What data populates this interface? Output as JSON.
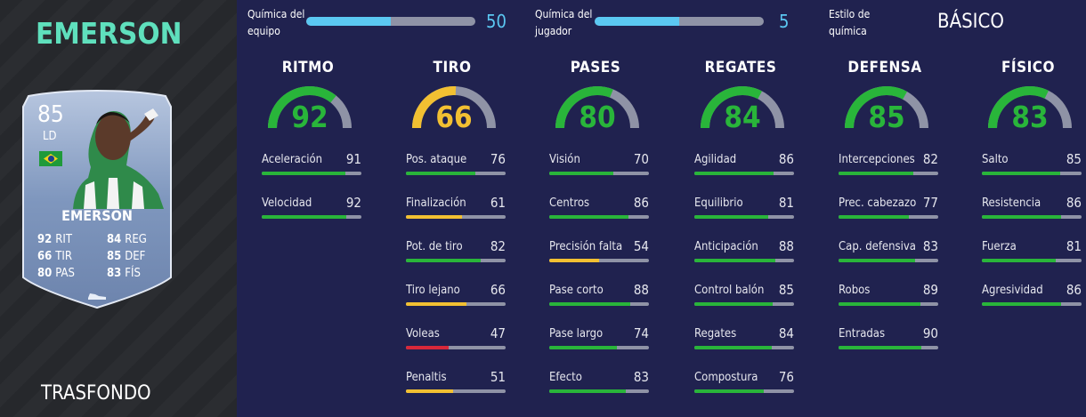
{
  "player": {
    "name": "EMERSON",
    "card": {
      "rating": "85",
      "position": "LD",
      "name": "EMERSON",
      "stats": [
        {
          "value": "92",
          "label": "RIT"
        },
        {
          "value": "84",
          "label": "REG"
        },
        {
          "value": "66",
          "label": "TIR"
        },
        {
          "value": "85",
          "label": "DEF"
        },
        {
          "value": "80",
          "label": "PAS"
        },
        {
          "value": "83",
          "label": "FÍS"
        }
      ]
    },
    "section_label": "TRASFONDO"
  },
  "chemistry": {
    "team_label_1": "Química del",
    "team_label_2": "equipo",
    "team_value": 50,
    "team_max": 100,
    "player_label_1": "Química del",
    "player_label_2": "jugador",
    "player_value": 5,
    "player_max": 10,
    "style_label_1": "Estilo de",
    "style_label_2": "química",
    "style_value": "BÁSICO"
  },
  "colors": {
    "green": "#29b53a",
    "yellow": "#f2c032",
    "red": "#d8283a",
    "track": "#8f93a6",
    "chem": "#5bc8f2"
  },
  "categories": [
    {
      "title": "RITMO",
      "value": 92,
      "subs": [
        {
          "label": "Aceleración",
          "value": 91
        },
        {
          "label": "Velocidad",
          "value": 92
        }
      ]
    },
    {
      "title": "TIRO",
      "value": 66,
      "subs": [
        {
          "label": "Pos. ataque",
          "value": 76
        },
        {
          "label": "Finalización",
          "value": 61
        },
        {
          "label": "Pot. de tiro",
          "value": 82
        },
        {
          "label": "Tiro lejano",
          "value": 66
        },
        {
          "label": "Voleas",
          "value": 47
        },
        {
          "label": "Penaltis",
          "value": 51
        }
      ]
    },
    {
      "title": "PASES",
      "value": 80,
      "subs": [
        {
          "label": "Visión",
          "value": 70
        },
        {
          "label": "Centros",
          "value": 86
        },
        {
          "label": "Precisión falta",
          "value": 54
        },
        {
          "label": "Pase corto",
          "value": 88
        },
        {
          "label": "Pase largo",
          "value": 74
        },
        {
          "label": "Efecto",
          "value": 83
        }
      ]
    },
    {
      "title": "REGATES",
      "value": 84,
      "subs": [
        {
          "label": "Agilidad",
          "value": 86
        },
        {
          "label": "Equilibrio",
          "value": 81
        },
        {
          "label": "Anticipación",
          "value": 88
        },
        {
          "label": "Control balón",
          "value": 85
        },
        {
          "label": "Regates",
          "value": 84
        },
        {
          "label": "Compostura",
          "value": 76
        }
      ]
    },
    {
      "title": "DEFENSA",
      "value": 85,
      "subs": [
        {
          "label": "Intercepciones",
          "value": 82
        },
        {
          "label": "Prec. cabezazo",
          "value": 77
        },
        {
          "label": "Cap. defensiva",
          "value": 83
        },
        {
          "label": "Robos",
          "value": 89
        },
        {
          "label": "Entradas",
          "value": 90
        }
      ]
    },
    {
      "title": "FÍSICO",
      "value": 83,
      "subs": [
        {
          "label": "Salto",
          "value": 85
        },
        {
          "label": "Resistencia",
          "value": 86
        },
        {
          "label": "Fuerza",
          "value": 81
        },
        {
          "label": "Agresividad",
          "value": 86
        }
      ]
    }
  ]
}
